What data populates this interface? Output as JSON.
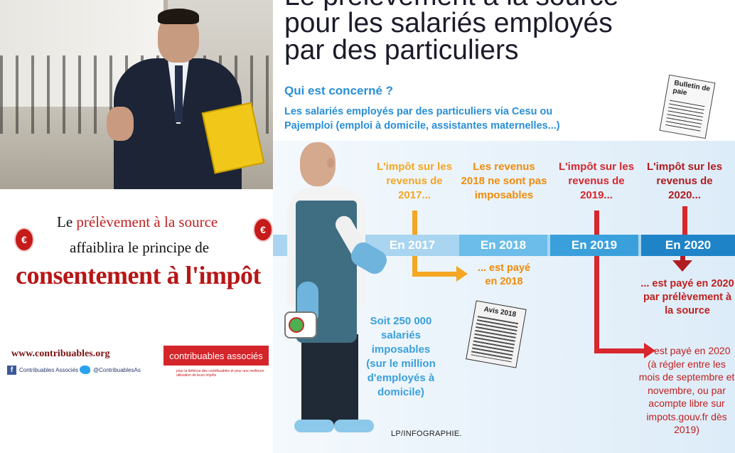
{
  "poster": {
    "line1_prefix": "Le ",
    "line1_red": "prélèvement à la source",
    "line2": "affaiblira le principe de",
    "line3": "consentement à l'impôt",
    "euro_symbol": "€",
    "url": "www.contribuables.org",
    "facebook_label": "Contribuables Associés",
    "twitter_label": "@ContribuablesAs",
    "brand": "contribuables associés",
    "brand_sub": "pour la défense des contribuables et pour une meilleure utilisation de leurs impôts"
  },
  "info": {
    "title_line1": "Le prélèvement à la source",
    "title_line2": "pour les salariés employés",
    "title_line3": "par des particuliers",
    "question": "Qui est concerné ?",
    "answer": "Les salariés employés par des particuliers via Cesu ou Pajemploi (emploi à domicile, assistantes maternelles...)",
    "bulletin": "Bulletin de paie",
    "columns": [
      {
        "head": "L'impôt sur les revenus de 2017...",
        "year": "En 2017",
        "color": "#f5a623"
      },
      {
        "head": "Les revenus 2018 ne sont pas imposables",
        "year": "En 2018",
        "color": "#f08c0b"
      },
      {
        "head": "L'impôt sur les revenus de 2019...",
        "year": "En 2019",
        "color": "#d7272d"
      },
      {
        "head": "L'impôt sur les revenus de 2020...",
        "year": "En 2020",
        "color": "#b01c1f"
      }
    ],
    "paid_2018": "... est payé en 2018",
    "avis": "Avis 2018",
    "stat": "Soit 250 000 salariés imposables (sur le million d'employés à domicile)",
    "paid_2020_source": "... est payé en 2020 par prélèvement à la source",
    "paid_2020_detail": "... est payé en 2020 (à régler entre les mois de septembre et novembre, ou par acompte libre sur impots.gouv.fr dès 2019)",
    "credit": "LP/INFOGRAPHIE.",
    "colors": {
      "blue_text": "#2a8fd6",
      "orange": "#f5a623",
      "red": "#d7272d",
      "timeline": "#3aa0dc"
    }
  }
}
